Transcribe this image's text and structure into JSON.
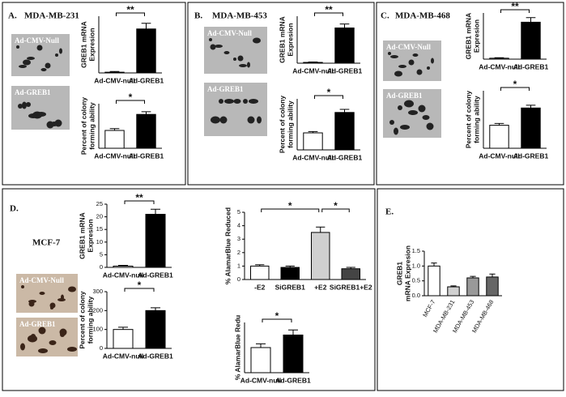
{
  "panels": [
    {
      "label": "A.",
      "title": "MDA-MB-231",
      "images": [
        "Ad-CMV-Null",
        "Ad-GREB1"
      ]
    },
    {
      "label": "B.",
      "title": "MDA-MB-453",
      "images": [
        "Ad-CMV-Null",
        "Ad-GREB1"
      ]
    },
    {
      "label": "C.",
      "title": "MDA-MB-468",
      "images": [
        "Ad-CMV-Null",
        "Ad-GREB1"
      ]
    },
    {
      "label": "D.",
      "title": "MCF-7",
      "images": [
        "Ad-CMV-Null",
        "Ad-GREB1"
      ]
    },
    {
      "label": "E."
    }
  ],
  "chart_data": [
    {
      "type": "bar",
      "ylabel": [
        "GREB1 mRNA",
        "Expresion"
      ],
      "categories": [
        "Ad-CMV-null",
        "Ad-GREB1"
      ],
      "values": [
        1,
        62
      ],
      "errors": [
        1,
        8
      ],
      "colors": [
        "#ffffff",
        "#000000"
      ],
      "ylim": [
        0,
        80
      ],
      "annotations": [
        "**"
      ]
    },
    {
      "type": "bar",
      "ylabel": [
        "Percent of colony",
        "forming ability"
      ],
      "categories": [
        "Ad-CMV-null",
        "Ad-GREB1"
      ],
      "values": [
        100,
        190
      ],
      "errors": [
        10,
        15
      ],
      "colors": [
        "#ffffff",
        "#000000"
      ],
      "ylim": [
        0,
        250
      ],
      "annotations": [
        "*"
      ]
    },
    {
      "type": "bar",
      "ylabel": [
        "GREB1 mRNA",
        "Expresion"
      ],
      "categories": [
        "Ad-CMV-null",
        "Ad-GREB1"
      ],
      "values": [
        1,
        45
      ],
      "errors": [
        0.5,
        5
      ],
      "colors": [
        "#ffffff",
        "#000000"
      ],
      "ylim": [
        0,
        60
      ],
      "annotations": [
        "**"
      ]
    },
    {
      "type": "bar",
      "ylabel": [
        "Percent of colony",
        "forming ability"
      ],
      "categories": [
        "Ad-CMV-null",
        "Ad-GREB1"
      ],
      "values": [
        100,
        220
      ],
      "errors": [
        8,
        18
      ],
      "colors": [
        "#ffffff",
        "#000000"
      ],
      "ylim": [
        0,
        300
      ],
      "annotations": [
        "*"
      ]
    },
    {
      "type": "bar",
      "ylabel": [
        "GREB1 mRNA",
        "Expresion"
      ],
      "categories": [
        "Ad-CMV-null",
        "Ad-GREB1"
      ],
      "values": [
        1,
        40
      ],
      "errors": [
        0.5,
        5
      ],
      "colors": [
        "#ffffff",
        "#000000"
      ],
      "ylim": [
        0,
        50
      ],
      "annotations": [
        "**"
      ]
    },
    {
      "type": "bar",
      "ylabel": [
        "Percent of colony",
        "forming ability"
      ],
      "categories": [
        "Ad-CMV-null",
        "Ad-GREB1"
      ],
      "values": [
        100,
        175
      ],
      "errors": [
        8,
        12
      ],
      "colors": [
        "#ffffff",
        "#000000"
      ],
      "ylim": [
        0,
        250
      ],
      "annotations": [
        "*"
      ]
    },
    {
      "type": "bar",
      "ylabel": [
        "GREB1 mRNA",
        "Expresion"
      ],
      "categories": [
        "Ad-CMV-null",
        "Ad-GREB1"
      ],
      "values": [
        0.5,
        21
      ],
      "errors": [
        0.3,
        2
      ],
      "colors": [
        "#ffffff",
        "#000000"
      ],
      "ylim": [
        0,
        25
      ],
      "yticks": [
        0,
        5,
        10,
        15,
        20,
        25
      ],
      "annotations": [
        "**"
      ]
    },
    {
      "type": "bar",
      "ylabel": [
        "Percent of colony",
        "forming ability"
      ],
      "categories": [
        "Ad-CMV-null",
        "Ad-GREB1"
      ],
      "values": [
        100,
        200
      ],
      "errors": [
        12,
        15
      ],
      "colors": [
        "#ffffff",
        "#000000"
      ],
      "ylim": [
        0,
        300
      ],
      "yticks": [
        0,
        100,
        200,
        300
      ],
      "annotations": [
        "*"
      ]
    },
    {
      "type": "bar",
      "ylabel": [
        "% AlamarBlue Reduced"
      ],
      "categories": [
        "-E2",
        "SiGREB1",
        "+E2",
        "SiGREB1+E2"
      ],
      "values": [
        1.0,
        0.9,
        3.5,
        0.8
      ],
      "errors": [
        0.1,
        0.1,
        0.4,
        0.1
      ],
      "colors": [
        "#ffffff",
        "#000000",
        "#d0d0d0",
        "#444444"
      ],
      "ylim": [
        0,
        5
      ],
      "yticks": [
        0,
        1,
        2,
        3,
        4,
        5
      ],
      "annotations": [
        "*",
        "*"
      ]
    },
    {
      "type": "bar",
      "ylabel": [
        "% AlamarBlue Redu"
      ],
      "categories": [
        "Ad-CMV-null",
        "Ad-GREB1"
      ],
      "values": [
        1.0,
        1.5
      ],
      "errors": [
        0.15,
        0.2
      ],
      "colors": [
        "#ffffff",
        "#000000"
      ],
      "ylim": [
        0,
        2
      ],
      "annotations": [
        "*"
      ]
    },
    {
      "type": "bar",
      "ylabel": [
        "GREB1",
        "mRNA Expresion"
      ],
      "categories": [
        "MCF-7",
        "MDA-MB-231",
        "MDA-MB-453",
        "MDA-MB-468"
      ],
      "values": [
        1.0,
        0.3,
        0.6,
        0.63
      ],
      "errors": [
        0.1,
        0.03,
        0.05,
        0.1
      ],
      "colors": [
        "#ffffff",
        "#d0d0d0",
        "#999999",
        "#666666"
      ],
      "ylim": [
        0,
        1.5
      ],
      "yticks": [
        {
          "value": 0,
          "label": "0.0"
        },
        {
          "value": 0.5,
          "label": "0.5"
        },
        {
          "value": 1,
          "label": "1.0"
        },
        {
          "value": 1.5,
          "label": "1.5"
        }
      ]
    }
  ]
}
